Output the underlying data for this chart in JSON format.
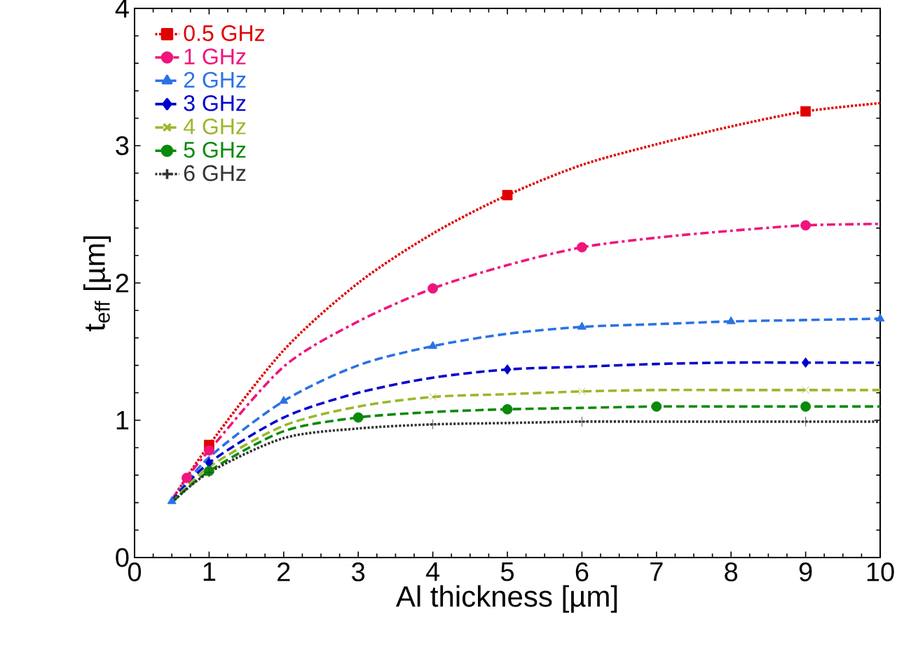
{
  "chart_data": {
    "type": "line",
    "xlabel": "Al thickness  [µm]",
    "ylabel": "t$_{eff}$  [µm]",
    "xlim": [
      0,
      10
    ],
    "ylim": [
      0,
      4
    ],
    "xticks": [
      0,
      1,
      2,
      3,
      4,
      5,
      6,
      7,
      8,
      9,
      10
    ],
    "yticks": [
      0,
      1,
      2,
      3,
      4
    ],
    "grid": false,
    "legend": "top left",
    "series": [
      {
        "name": "0.5 GHz",
        "color": "#e00000",
        "line_style": "dotted",
        "x": [
          0.5,
          1,
          2,
          3,
          4,
          5,
          6,
          7,
          8,
          9,
          10
        ],
        "values": [
          0.42,
          0.82,
          1.51,
          2.0,
          2.36,
          2.64,
          2.86,
          3.01,
          3.14,
          3.25,
          3.31
        ]
      },
      {
        "type": "scatter",
        "color": "#e00000",
        "marker": "square",
        "x": [
          1,
          5,
          9
        ],
        "values": [
          0.82,
          2.64,
          3.25
        ]
      },
      {
        "name": "1 GHz",
        "color": "#f0147c",
        "line_style": "dashdot",
        "x": [
          0.5,
          0.7,
          1,
          2,
          3,
          4,
          5,
          6,
          7,
          8,
          9,
          10
        ],
        "values": [
          0.42,
          0.58,
          0.78,
          1.39,
          1.72,
          1.96,
          2.13,
          2.26,
          2.33,
          2.38,
          2.42,
          2.43
        ]
      },
      {
        "type": "scatter",
        "color": "#f0147c",
        "marker": "circle",
        "x": [
          0.7,
          1,
          4,
          6,
          9
        ],
        "values": [
          0.58,
          0.78,
          1.96,
          2.26,
          2.42
        ]
      },
      {
        "name": "2 GHz",
        "color": "#2a72e6",
        "line_style": "dashed",
        "x": [
          0.5,
          1,
          2,
          3,
          4,
          5,
          6,
          7,
          8,
          9,
          10
        ],
        "values": [
          0.41,
          0.73,
          1.14,
          1.4,
          1.54,
          1.63,
          1.68,
          1.7,
          1.72,
          1.73,
          1.74
        ]
      },
      {
        "type": "scatter",
        "color": "#2a72e6",
        "marker": "triangle",
        "x": [
          0.5,
          2,
          4,
          6,
          8,
          10
        ],
        "values": [
          0.41,
          1.14,
          1.54,
          1.68,
          1.72,
          1.74
        ]
      },
      {
        "name": "3 GHz",
        "color": "#0000cc",
        "line_style": "dashed",
        "x": [
          0.5,
          1,
          2,
          3,
          4,
          5,
          6,
          7,
          8,
          9,
          10
        ],
        "values": [
          0.41,
          0.69,
          1.02,
          1.2,
          1.31,
          1.37,
          1.39,
          1.41,
          1.42,
          1.42,
          1.42
        ]
      },
      {
        "type": "scatter",
        "color": "#0000cc",
        "marker": "diamond",
        "x": [
          1,
          5,
          9
        ],
        "values": [
          0.69,
          1.37,
          1.42
        ]
      },
      {
        "name": "4 GHz",
        "color": "#9ab82a",
        "line_style": "dashed",
        "x": [
          0.5,
          1,
          2,
          3,
          4,
          5,
          6,
          7,
          8,
          9,
          10
        ],
        "values": [
          0.4,
          0.66,
          0.96,
          1.1,
          1.17,
          1.19,
          1.21,
          1.22,
          1.22,
          1.22,
          1.22
        ]
      },
      {
        "type": "scatter",
        "color": "#9ab82a",
        "marker": "cross",
        "x": [
          4,
          6,
          9
        ],
        "values": [
          1.17,
          1.21,
          1.22
        ]
      },
      {
        "name": "5 GHz",
        "color": "#0a8a0a",
        "line_style": "dashed",
        "x": [
          0.5,
          1,
          2,
          3,
          4,
          5,
          6,
          7,
          8,
          9,
          10
        ],
        "values": [
          0.4,
          0.63,
          0.92,
          1.02,
          1.06,
          1.08,
          1.09,
          1.1,
          1.1,
          1.1,
          1.1
        ]
      },
      {
        "type": "scatter",
        "color": "#0a8a0a",
        "marker": "circle",
        "x": [
          1,
          3,
          5,
          7,
          9
        ],
        "values": [
          0.63,
          1.02,
          1.08,
          1.1,
          1.1
        ]
      },
      {
        "name": "6 GHz",
        "color": "#333333",
        "line_style": "dotted",
        "x": [
          0.5,
          1,
          2,
          3,
          4,
          5,
          6,
          7,
          8,
          9,
          10
        ],
        "values": [
          0.4,
          0.62,
          0.87,
          0.94,
          0.97,
          0.98,
          0.99,
          0.99,
          0.99,
          0.99,
          0.99
        ]
      },
      {
        "type": "scatter",
        "color": "#333333",
        "marker": "plus",
        "x": [
          1,
          4,
          6,
          9
        ],
        "values": [
          0.62,
          0.97,
          0.99,
          0.99
        ]
      }
    ]
  }
}
